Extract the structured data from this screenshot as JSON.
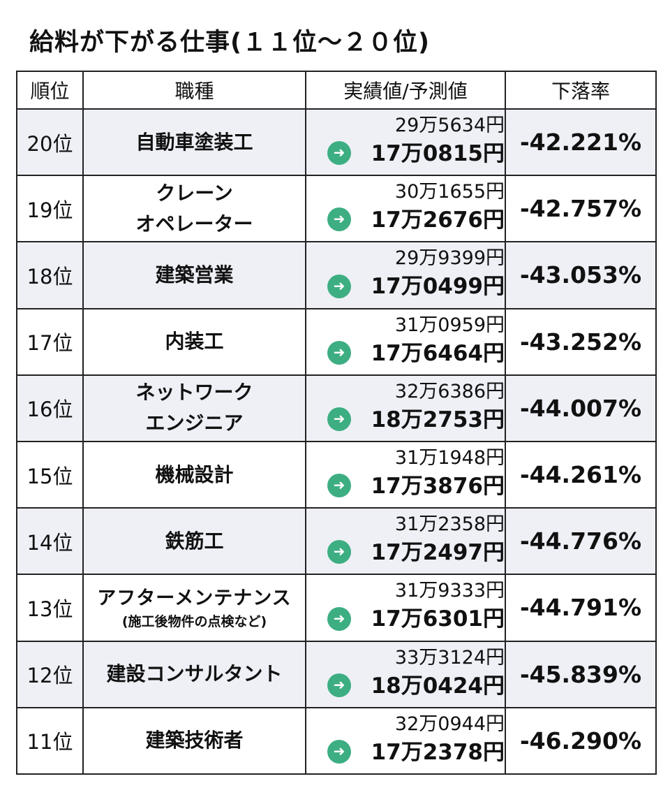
{
  "title": "給料が下がる仕事(１１位〜２０位)",
  "headers": [
    "順位",
    "職種",
    "実績値/予測値",
    "下落率"
  ],
  "arrow_icon": "arrow-right-circle-icon",
  "accent_color": "#3dae82",
  "rows": [
    {
      "rank": "20位",
      "job": [
        "自動車塗装工"
      ],
      "actual": "29万5634円",
      "predicted": "17万0815円",
      "rate": "-42.221%"
    },
    {
      "rank": "19位",
      "job": [
        "クレーン",
        "オペレーター"
      ],
      "actual": "30万1655円",
      "predicted": "17万2676円",
      "rate": "-42.757%"
    },
    {
      "rank": "18位",
      "job": [
        "建築営業"
      ],
      "actual": "29万9399円",
      "predicted": "17万0499円",
      "rate": "-43.053%"
    },
    {
      "rank": "17位",
      "job": [
        "内装工"
      ],
      "actual": "31万0959円",
      "predicted": "17万6464円",
      "rate": "-43.252%"
    },
    {
      "rank": "16位",
      "job": [
        "ネットワーク",
        "エンジニア"
      ],
      "actual": "32万6386円",
      "predicted": "18万2753円",
      "rate": "-44.007%"
    },
    {
      "rank": "15位",
      "job": [
        "機械設計"
      ],
      "actual": "31万1948円",
      "predicted": "17万3876円",
      "rate": "-44.261%"
    },
    {
      "rank": "14位",
      "job": [
        "鉄筋工"
      ],
      "actual": "31万2358円",
      "predicted": "17万2497円",
      "rate": "-44.776%"
    },
    {
      "rank": "13位",
      "job": [
        "アフターメンテナンス"
      ],
      "job_sub": "(施工後物件の点検など)",
      "actual": "31万9333円",
      "predicted": "17万6301円",
      "rate": "-44.791%"
    },
    {
      "rank": "12位",
      "job": [
        "建設コンサルタント"
      ],
      "actual": "33万3124円",
      "predicted": "18万0424円",
      "rate": "-45.839%"
    },
    {
      "rank": "11位",
      "job": [
        "建築技術者"
      ],
      "actual": "32万0944円",
      "predicted": "17万2378円",
      "rate": "-46.290%"
    }
  ]
}
